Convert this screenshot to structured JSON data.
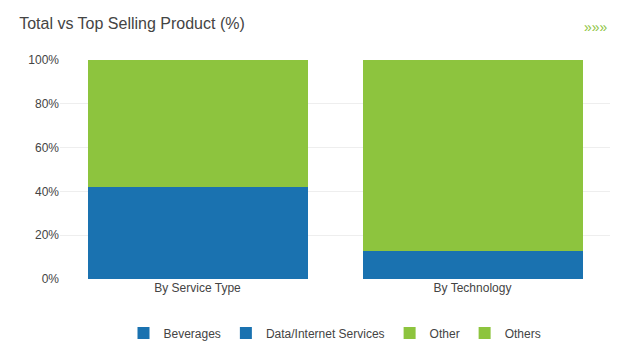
{
  "chart_data": {
    "type": "bar",
    "stacked": true,
    "title": "Total vs Top Selling Product (%)",
    "annotations": [
      "»»»"
    ],
    "categories": [
      "By Service Type",
      "By Technology"
    ],
    "series": [
      {
        "name": "Beverages",
        "color": "#1a72b0",
        "values": [
          42,
          null
        ]
      },
      {
        "name": "Data/Internet Services",
        "color": "#1a72b0",
        "values": [
          null,
          13
        ]
      },
      {
        "name": "Other",
        "color": "#8dc43e",
        "values": [
          58,
          null
        ]
      },
      {
        "name": "Others",
        "color": "#8dc43e",
        "values": [
          null,
          87
        ]
      }
    ],
    "ylim": [
      0,
      100
    ],
    "yticks": [
      {
        "value": 0,
        "label": "0%"
      },
      {
        "value": 20,
        "label": "20%"
      },
      {
        "value": 40,
        "label": "40%"
      },
      {
        "value": 60,
        "label": "60%"
      },
      {
        "value": 80,
        "label": "80%"
      },
      {
        "value": 100,
        "label": "100%"
      }
    ],
    "grid": true,
    "legend": "bottom"
  }
}
